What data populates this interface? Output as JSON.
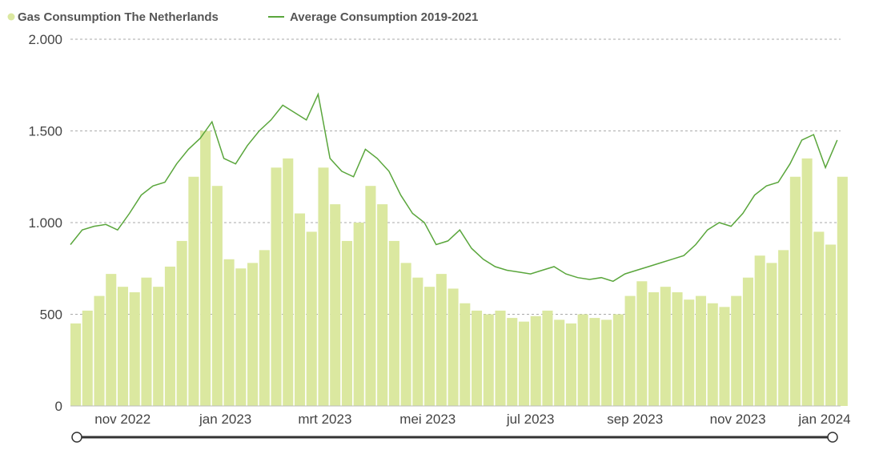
{
  "chart_data": {
    "type": "bar",
    "title": "",
    "xlabel": "",
    "ylabel": "",
    "x_range": [
      "2022-10-01",
      "2024-01-01"
    ],
    "ylim": [
      0,
      2000
    ],
    "y_ticks": [
      0,
      500,
      1000,
      1500,
      2000
    ],
    "y_tick_labels": [
      "0",
      "500",
      "1.000",
      "1.500",
      "2.000"
    ],
    "x_ticks": [
      "2022-11-01",
      "2023-01-01",
      "2023-03-01",
      "2023-05-01",
      "2023-07-01",
      "2023-09-01",
      "2023-11-01",
      "2024-01-01"
    ],
    "x_tick_labels": [
      "nov 2022",
      "jan 2023",
      "mrt 2023",
      "mei 2023",
      "jul 2023",
      "sep 2023",
      "nov 2023",
      "jan 2024"
    ],
    "grid": true,
    "legend_position": "top-left",
    "series": [
      {
        "name": "Gas Consumption The Netherlands",
        "type": "bar",
        "color": "#dbe8a0",
        "points": [
          [
            "2022-10-01",
            450
          ],
          [
            "2022-10-08",
            520
          ],
          [
            "2022-10-15",
            600
          ],
          [
            "2022-10-22",
            720
          ],
          [
            "2022-10-29",
            650
          ],
          [
            "2022-11-05",
            620
          ],
          [
            "2022-11-12",
            700
          ],
          [
            "2022-11-19",
            650
          ],
          [
            "2022-11-26",
            760
          ],
          [
            "2022-12-03",
            900
          ],
          [
            "2022-12-10",
            1250
          ],
          [
            "2022-12-17",
            1500
          ],
          [
            "2022-12-24",
            1200
          ],
          [
            "2022-12-31",
            800
          ],
          [
            "2023-01-07",
            750
          ],
          [
            "2023-01-14",
            780
          ],
          [
            "2023-01-21",
            850
          ],
          [
            "2023-01-28",
            1300
          ],
          [
            "2023-02-04",
            1350
          ],
          [
            "2023-02-11",
            1050
          ],
          [
            "2023-02-18",
            950
          ],
          [
            "2023-02-25",
            1300
          ],
          [
            "2023-03-04",
            1100
          ],
          [
            "2023-03-11",
            900
          ],
          [
            "2023-03-18",
            1000
          ],
          [
            "2023-03-25",
            1200
          ],
          [
            "2023-04-01",
            1100
          ],
          [
            "2023-04-08",
            900
          ],
          [
            "2023-04-15",
            780
          ],
          [
            "2023-04-22",
            700
          ],
          [
            "2023-04-29",
            650
          ],
          [
            "2023-05-06",
            720
          ],
          [
            "2023-05-13",
            640
          ],
          [
            "2023-05-20",
            560
          ],
          [
            "2023-05-27",
            520
          ],
          [
            "2023-06-03",
            500
          ],
          [
            "2023-06-10",
            520
          ],
          [
            "2023-06-17",
            480
          ],
          [
            "2023-06-24",
            460
          ],
          [
            "2023-07-01",
            490
          ],
          [
            "2023-07-08",
            520
          ],
          [
            "2023-07-15",
            470
          ],
          [
            "2023-07-22",
            450
          ],
          [
            "2023-07-29",
            500
          ],
          [
            "2023-08-05",
            480
          ],
          [
            "2023-08-12",
            470
          ],
          [
            "2023-08-19",
            500
          ],
          [
            "2023-08-26",
            600
          ],
          [
            "2023-09-02",
            680
          ],
          [
            "2023-09-09",
            620
          ],
          [
            "2023-09-16",
            650
          ],
          [
            "2023-09-23",
            620
          ],
          [
            "2023-09-30",
            580
          ],
          [
            "2023-10-07",
            600
          ],
          [
            "2023-10-14",
            560
          ],
          [
            "2023-10-21",
            540
          ],
          [
            "2023-10-28",
            600
          ],
          [
            "2023-11-04",
            700
          ],
          [
            "2023-11-11",
            820
          ],
          [
            "2023-11-18",
            780
          ],
          [
            "2023-11-25",
            850
          ],
          [
            "2023-12-02",
            1250
          ],
          [
            "2023-12-09",
            1350
          ],
          [
            "2023-12-16",
            950
          ],
          [
            "2023-12-23",
            880
          ],
          [
            "2023-12-30",
            1250
          ]
        ]
      },
      {
        "name": "Average Consumption 2019-2021",
        "type": "line",
        "color": "#5aa63c",
        "points": [
          [
            "2022-10-01",
            880
          ],
          [
            "2022-10-08",
            960
          ],
          [
            "2022-10-15",
            980
          ],
          [
            "2022-10-22",
            990
          ],
          [
            "2022-10-29",
            960
          ],
          [
            "2022-11-05",
            1050
          ],
          [
            "2022-11-12",
            1150
          ],
          [
            "2022-11-19",
            1200
          ],
          [
            "2022-11-26",
            1220
          ],
          [
            "2022-12-03",
            1320
          ],
          [
            "2022-12-10",
            1400
          ],
          [
            "2022-12-17",
            1460
          ],
          [
            "2022-12-24",
            1550
          ],
          [
            "2022-12-31",
            1350
          ],
          [
            "2023-01-07",
            1320
          ],
          [
            "2023-01-14",
            1420
          ],
          [
            "2023-01-21",
            1500
          ],
          [
            "2023-01-28",
            1560
          ],
          [
            "2023-02-04",
            1640
          ],
          [
            "2023-02-11",
            1600
          ],
          [
            "2023-02-18",
            1560
          ],
          [
            "2023-02-25",
            1700
          ],
          [
            "2023-03-04",
            1350
          ],
          [
            "2023-03-11",
            1280
          ],
          [
            "2023-03-18",
            1250
          ],
          [
            "2023-03-25",
            1400
          ],
          [
            "2023-04-01",
            1350
          ],
          [
            "2023-04-08",
            1280
          ],
          [
            "2023-04-15",
            1150
          ],
          [
            "2023-04-22",
            1050
          ],
          [
            "2023-04-29",
            1000
          ],
          [
            "2023-05-06",
            880
          ],
          [
            "2023-05-13",
            900
          ],
          [
            "2023-05-20",
            960
          ],
          [
            "2023-05-27",
            860
          ],
          [
            "2023-06-03",
            800
          ],
          [
            "2023-06-10",
            760
          ],
          [
            "2023-06-17",
            740
          ],
          [
            "2023-06-24",
            730
          ],
          [
            "2023-07-01",
            720
          ],
          [
            "2023-07-08",
            740
          ],
          [
            "2023-07-15",
            760
          ],
          [
            "2023-07-22",
            720
          ],
          [
            "2023-07-29",
            700
          ],
          [
            "2023-08-05",
            690
          ],
          [
            "2023-08-12",
            700
          ],
          [
            "2023-08-19",
            680
          ],
          [
            "2023-08-26",
            720
          ],
          [
            "2023-09-02",
            740
          ],
          [
            "2023-09-09",
            760
          ],
          [
            "2023-09-16",
            780
          ],
          [
            "2023-09-23",
            800
          ],
          [
            "2023-09-30",
            820
          ],
          [
            "2023-10-07",
            880
          ],
          [
            "2023-10-14",
            960
          ],
          [
            "2023-10-21",
            1000
          ],
          [
            "2023-10-28",
            980
          ],
          [
            "2023-11-04",
            1050
          ],
          [
            "2023-11-11",
            1150
          ],
          [
            "2023-11-18",
            1200
          ],
          [
            "2023-11-25",
            1220
          ],
          [
            "2023-12-02",
            1320
          ],
          [
            "2023-12-09",
            1450
          ],
          [
            "2023-12-16",
            1480
          ],
          [
            "2023-12-23",
            1300
          ],
          [
            "2023-12-30",
            1450
          ]
        ]
      }
    ]
  }
}
